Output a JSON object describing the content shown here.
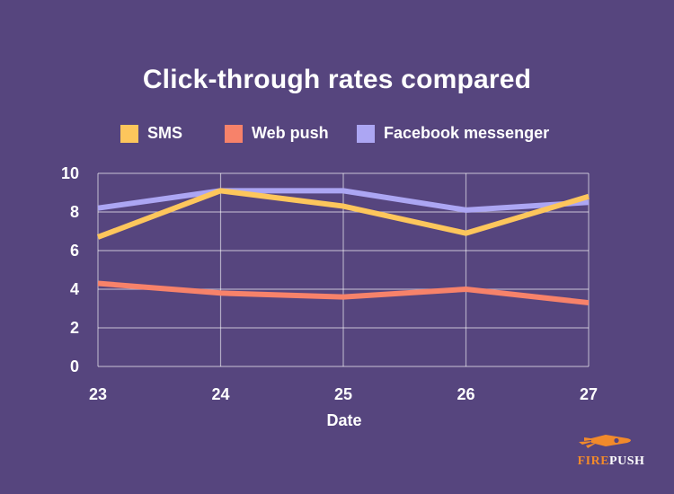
{
  "chart_data": {
    "type": "line",
    "title": "Click-through rates compared",
    "xlabel": "Date",
    "ylabel": "",
    "x": [
      "23",
      "24",
      "25",
      "26",
      "27"
    ],
    "ylim": [
      0,
      10
    ],
    "yticks": [
      "0",
      "2",
      "4",
      "6",
      "8",
      "10"
    ],
    "grid": true,
    "legend_position": "top",
    "series": [
      {
        "name": "SMS",
        "color": "#fdc65c",
        "values": [
          6.7,
          9.1,
          8.3,
          6.9,
          8.8
        ]
      },
      {
        "name": "Web push",
        "color": "#f7826a",
        "values": [
          4.3,
          3.8,
          3.6,
          4.0,
          3.3
        ]
      },
      {
        "name": "Facebook messenger",
        "color": "#aca6f3",
        "values": [
          8.2,
          9.1,
          9.1,
          8.1,
          8.5
        ]
      }
    ]
  },
  "brand": {
    "fire": "FIRE",
    "push": "PUSH",
    "fire_color": "#f28a2b"
  }
}
